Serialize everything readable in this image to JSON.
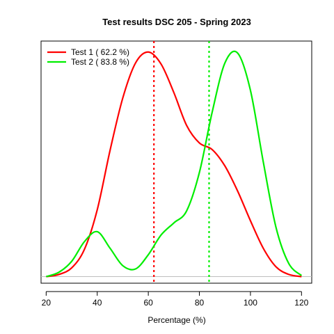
{
  "chart_data": {
    "type": "line",
    "title": "Test results DSC 205 - Spring 2023",
    "xlabel": "Percentage (%)",
    "ylabel": "",
    "xlim": [
      18,
      124
    ],
    "ylim": [
      -0.0006,
      0.0215
    ],
    "xticks": [
      20,
      40,
      60,
      80,
      100,
      120
    ],
    "baseline": {
      "y": 0,
      "color": "#bebebe"
    },
    "series": [
      {
        "name": "Test 1 ( 62.2 %)",
        "color": "#ff0000",
        "mean": 62.2,
        "x": [
          20,
          25,
          30,
          35,
          40,
          45,
          50,
          55,
          60,
          65,
          70,
          75,
          80,
          85,
          90,
          95,
          100,
          105,
          110,
          115,
          120
        ],
        "y": [
          0,
          0.0002,
          0.0008,
          0.0025,
          0.0061,
          0.0115,
          0.0163,
          0.0195,
          0.0205,
          0.0194,
          0.0168,
          0.0138,
          0.0122,
          0.0116,
          0.0101,
          0.0078,
          0.0051,
          0.0026,
          0.0009,
          0.0002,
          0
        ]
      },
      {
        "name": "Test 2 ( 83.8 %)",
        "color": "#00ee00",
        "mean": 83.8,
        "x": [
          20,
          25,
          30,
          35,
          40,
          45,
          50,
          55,
          60,
          65,
          70,
          75,
          80,
          85,
          90,
          95,
          100,
          105,
          110,
          115,
          120
        ],
        "y": [
          0,
          0.0004,
          0.0014,
          0.0032,
          0.0041,
          0.0026,
          0.001,
          0.0007,
          0.002,
          0.0038,
          0.0049,
          0.006,
          0.0095,
          0.015,
          0.0195,
          0.0204,
          0.017,
          0.0105,
          0.0045,
          0.0012,
          0.0001
        ]
      }
    ],
    "legend_position": "top-left",
    "grid": false
  }
}
